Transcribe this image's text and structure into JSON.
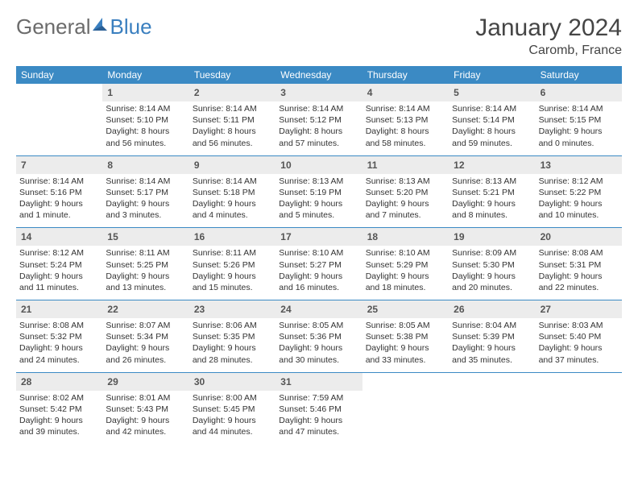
{
  "logo": {
    "text1": "General",
    "text2": "Blue",
    "accent": "#3a7fbf"
  },
  "title": {
    "month": "January 2024",
    "location": "Caromb, France"
  },
  "dow": [
    "Sunday",
    "Monday",
    "Tuesday",
    "Wednesday",
    "Thursday",
    "Friday",
    "Saturday"
  ],
  "header_bg": "#3b8ac4",
  "header_fg": "#ffffff",
  "daynum_bg": "#ececec",
  "rule_color": "#3b8ac4",
  "weeks": [
    [
      {
        "empty": true
      },
      {
        "n": "1",
        "sr": "Sunrise: 8:14 AM",
        "ss": "Sunset: 5:10 PM",
        "d1": "Daylight: 8 hours",
        "d2": "and 56 minutes."
      },
      {
        "n": "2",
        "sr": "Sunrise: 8:14 AM",
        "ss": "Sunset: 5:11 PM",
        "d1": "Daylight: 8 hours",
        "d2": "and 56 minutes."
      },
      {
        "n": "3",
        "sr": "Sunrise: 8:14 AM",
        "ss": "Sunset: 5:12 PM",
        "d1": "Daylight: 8 hours",
        "d2": "and 57 minutes."
      },
      {
        "n": "4",
        "sr": "Sunrise: 8:14 AM",
        "ss": "Sunset: 5:13 PM",
        "d1": "Daylight: 8 hours",
        "d2": "and 58 minutes."
      },
      {
        "n": "5",
        "sr": "Sunrise: 8:14 AM",
        "ss": "Sunset: 5:14 PM",
        "d1": "Daylight: 8 hours",
        "d2": "and 59 minutes."
      },
      {
        "n": "6",
        "sr": "Sunrise: 8:14 AM",
        "ss": "Sunset: 5:15 PM",
        "d1": "Daylight: 9 hours",
        "d2": "and 0 minutes."
      }
    ],
    [
      {
        "n": "7",
        "sr": "Sunrise: 8:14 AM",
        "ss": "Sunset: 5:16 PM",
        "d1": "Daylight: 9 hours",
        "d2": "and 1 minute."
      },
      {
        "n": "8",
        "sr": "Sunrise: 8:14 AM",
        "ss": "Sunset: 5:17 PM",
        "d1": "Daylight: 9 hours",
        "d2": "and 3 minutes."
      },
      {
        "n": "9",
        "sr": "Sunrise: 8:14 AM",
        "ss": "Sunset: 5:18 PM",
        "d1": "Daylight: 9 hours",
        "d2": "and 4 minutes."
      },
      {
        "n": "10",
        "sr": "Sunrise: 8:13 AM",
        "ss": "Sunset: 5:19 PM",
        "d1": "Daylight: 9 hours",
        "d2": "and 5 minutes."
      },
      {
        "n": "11",
        "sr": "Sunrise: 8:13 AM",
        "ss": "Sunset: 5:20 PM",
        "d1": "Daylight: 9 hours",
        "d2": "and 7 minutes."
      },
      {
        "n": "12",
        "sr": "Sunrise: 8:13 AM",
        "ss": "Sunset: 5:21 PM",
        "d1": "Daylight: 9 hours",
        "d2": "and 8 minutes."
      },
      {
        "n": "13",
        "sr": "Sunrise: 8:12 AM",
        "ss": "Sunset: 5:22 PM",
        "d1": "Daylight: 9 hours",
        "d2": "and 10 minutes."
      }
    ],
    [
      {
        "n": "14",
        "sr": "Sunrise: 8:12 AM",
        "ss": "Sunset: 5:24 PM",
        "d1": "Daylight: 9 hours",
        "d2": "and 11 minutes."
      },
      {
        "n": "15",
        "sr": "Sunrise: 8:11 AM",
        "ss": "Sunset: 5:25 PM",
        "d1": "Daylight: 9 hours",
        "d2": "and 13 minutes."
      },
      {
        "n": "16",
        "sr": "Sunrise: 8:11 AM",
        "ss": "Sunset: 5:26 PM",
        "d1": "Daylight: 9 hours",
        "d2": "and 15 minutes."
      },
      {
        "n": "17",
        "sr": "Sunrise: 8:10 AM",
        "ss": "Sunset: 5:27 PM",
        "d1": "Daylight: 9 hours",
        "d2": "and 16 minutes."
      },
      {
        "n": "18",
        "sr": "Sunrise: 8:10 AM",
        "ss": "Sunset: 5:29 PM",
        "d1": "Daylight: 9 hours",
        "d2": "and 18 minutes."
      },
      {
        "n": "19",
        "sr": "Sunrise: 8:09 AM",
        "ss": "Sunset: 5:30 PM",
        "d1": "Daylight: 9 hours",
        "d2": "and 20 minutes."
      },
      {
        "n": "20",
        "sr": "Sunrise: 8:08 AM",
        "ss": "Sunset: 5:31 PM",
        "d1": "Daylight: 9 hours",
        "d2": "and 22 minutes."
      }
    ],
    [
      {
        "n": "21",
        "sr": "Sunrise: 8:08 AM",
        "ss": "Sunset: 5:32 PM",
        "d1": "Daylight: 9 hours",
        "d2": "and 24 minutes."
      },
      {
        "n": "22",
        "sr": "Sunrise: 8:07 AM",
        "ss": "Sunset: 5:34 PM",
        "d1": "Daylight: 9 hours",
        "d2": "and 26 minutes."
      },
      {
        "n": "23",
        "sr": "Sunrise: 8:06 AM",
        "ss": "Sunset: 5:35 PM",
        "d1": "Daylight: 9 hours",
        "d2": "and 28 minutes."
      },
      {
        "n": "24",
        "sr": "Sunrise: 8:05 AM",
        "ss": "Sunset: 5:36 PM",
        "d1": "Daylight: 9 hours",
        "d2": "and 30 minutes."
      },
      {
        "n": "25",
        "sr": "Sunrise: 8:05 AM",
        "ss": "Sunset: 5:38 PM",
        "d1": "Daylight: 9 hours",
        "d2": "and 33 minutes."
      },
      {
        "n": "26",
        "sr": "Sunrise: 8:04 AM",
        "ss": "Sunset: 5:39 PM",
        "d1": "Daylight: 9 hours",
        "d2": "and 35 minutes."
      },
      {
        "n": "27",
        "sr": "Sunrise: 8:03 AM",
        "ss": "Sunset: 5:40 PM",
        "d1": "Daylight: 9 hours",
        "d2": "and 37 minutes."
      }
    ],
    [
      {
        "n": "28",
        "sr": "Sunrise: 8:02 AM",
        "ss": "Sunset: 5:42 PM",
        "d1": "Daylight: 9 hours",
        "d2": "and 39 minutes."
      },
      {
        "n": "29",
        "sr": "Sunrise: 8:01 AM",
        "ss": "Sunset: 5:43 PM",
        "d1": "Daylight: 9 hours",
        "d2": "and 42 minutes."
      },
      {
        "n": "30",
        "sr": "Sunrise: 8:00 AM",
        "ss": "Sunset: 5:45 PM",
        "d1": "Daylight: 9 hours",
        "d2": "and 44 minutes."
      },
      {
        "n": "31",
        "sr": "Sunrise: 7:59 AM",
        "ss": "Sunset: 5:46 PM",
        "d1": "Daylight: 9 hours",
        "d2": "and 47 minutes."
      },
      {
        "empty": true
      },
      {
        "empty": true
      },
      {
        "empty": true
      }
    ]
  ]
}
